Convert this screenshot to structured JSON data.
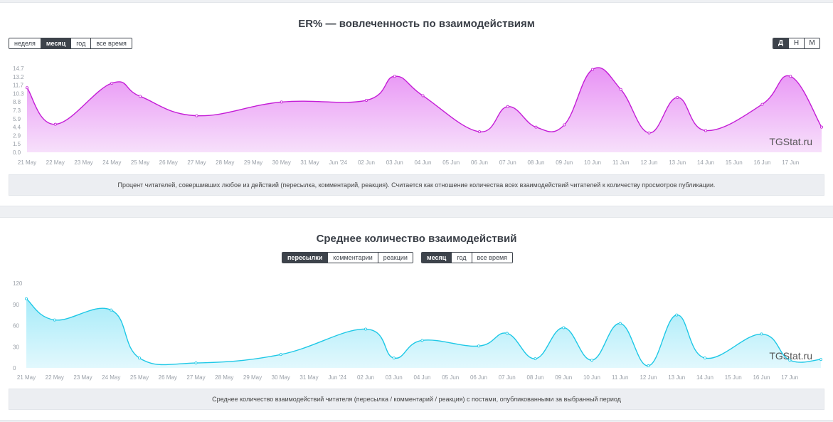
{
  "charts": [
    {
      "title": "ER% — вовлеченность по взаимодействиям",
      "range_buttons": [
        "неделя",
        "месяц",
        "год",
        "все время"
      ],
      "range_active": "месяц",
      "granularity_buttons": [
        "Д",
        "Н",
        "М"
      ],
      "granularity_active": "Д",
      "description": "Процент читателей, совершивших любое из действий (пересылка, комментарий, реакция). Считается как отношение количества всех взаимодействий читателей к количеству просмотров публикации.",
      "watermark": "TGStat.ru"
    },
    {
      "title": "Среднее количество взаимодействий",
      "type_buttons": [
        "пересылки",
        "комментарии",
        "реакции"
      ],
      "type_active": "пересылки",
      "range_buttons": [
        "месяц",
        "год",
        "все время"
      ],
      "range_active": "месяц",
      "description": "Среднее количество взаимодействий читателя (пересылка / комментарий / реакция) с постами, опубликованными за выбранный период",
      "watermark": "TGStat.ru"
    }
  ],
  "chart_data": [
    {
      "type": "area",
      "title": "ER% — вовлеченность по взаимодействиям",
      "color": "#c41dd6",
      "fill_top": "#e892f5",
      "fill_bottom": "#f7e0fb",
      "x_tick_labels": [
        "21 May",
        "22 May",
        "23 May",
        "24 May",
        "25 May",
        "26 May",
        "27 May",
        "28 May",
        "29 May",
        "30 May",
        "31 May",
        "Jun '24",
        "02 Jun",
        "03 Jun",
        "04 Jun",
        "05 Jun",
        "06 Jun",
        "07 Jun",
        "08 Jun",
        "09 Jun",
        "10 Jun",
        "11 Jun",
        "12 Jun",
        "13 Jun",
        "14 Jun",
        "15 Jun",
        "16 Jun",
        "17 Jun"
      ],
      "y_ticks": [
        "0.0",
        "1.5",
        "2.9",
        "4.4",
        "5.9",
        "7.3",
        "8.8",
        "10.3",
        "11.7",
        "13.2",
        "14.7"
      ],
      "ylim": [
        0,
        14.7
      ],
      "points": [
        [
          0,
          11.3
        ],
        [
          1,
          4.9
        ],
        [
          3,
          12.1
        ],
        [
          4,
          9.8
        ],
        [
          6,
          6.4
        ],
        [
          9,
          8.8
        ],
        [
          12,
          9.1
        ],
        [
          13,
          13.3
        ],
        [
          14,
          9.9
        ],
        [
          16,
          3.6
        ],
        [
          17,
          8.0
        ],
        [
          18,
          4.4
        ],
        [
          19,
          4.8
        ],
        [
          20,
          14.5
        ],
        [
          21,
          11.0
        ],
        [
          22,
          3.4
        ],
        [
          23,
          9.6
        ],
        [
          24,
          3.8
        ],
        [
          26,
          8.4
        ],
        [
          27,
          13.3
        ],
        [
          28.1,
          4.4
        ]
      ]
    },
    {
      "type": "area",
      "title": "Среднее количество взаимодействий",
      "color": "#1ec8e6",
      "fill_top": "#a6ebf9",
      "fill_bottom": "#e2f8fd",
      "x_tick_labels": [
        "21 May",
        "22 May",
        "23 May",
        "24 May",
        "25 May",
        "26 May",
        "27 May",
        "28 May",
        "29 May",
        "30 May",
        "31 May",
        "Jun '24",
        "02 Jun",
        "03 Jun",
        "04 Jun",
        "05 Jun",
        "06 Jun",
        "07 Jun",
        "08 Jun",
        "09 Jun",
        "10 Jun",
        "11 Jun",
        "12 Jun",
        "13 Jun",
        "14 Jun",
        "15 Jun",
        "16 Jun",
        "17 Jun"
      ],
      "y_ticks": [
        "0",
        "30",
        "60",
        "90",
        "120"
      ],
      "ylim": [
        0,
        120
      ],
      "points": [
        [
          0,
          98
        ],
        [
          1,
          68
        ],
        [
          3,
          82
        ],
        [
          4,
          14
        ],
        [
          6,
          7
        ],
        [
          9,
          19
        ],
        [
          12,
          55
        ],
        [
          13,
          14
        ],
        [
          14,
          39
        ],
        [
          16,
          31
        ],
        [
          17,
          49
        ],
        [
          18,
          13
        ],
        [
          19,
          57
        ],
        [
          20,
          11
        ],
        [
          21,
          63
        ],
        [
          22,
          3
        ],
        [
          23,
          75
        ],
        [
          24,
          14
        ],
        [
          26,
          48
        ],
        [
          27,
          11
        ],
        [
          28.1,
          12
        ]
      ]
    }
  ]
}
